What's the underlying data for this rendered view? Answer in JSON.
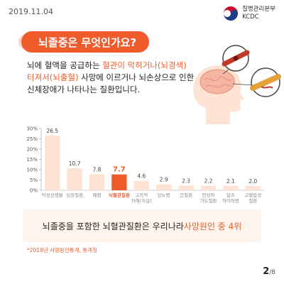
{
  "date": "2019.11.04",
  "org": {
    "line1": "질병관리본부",
    "line2": "KCDC"
  },
  "title": "뇌졸중은 무엇인가요?",
  "desc": {
    "l1a": "뇌에 혈액을 공급하는 ",
    "l1b": "혈관이 막히거나(뇌경색)",
    "l2a": "터져서(뇌출혈)",
    "l2b": " 사망에 이르거나 뇌손상으로 인한",
    "l3": "신체장애가 나타나는 질환입니다."
  },
  "callout": {
    "text": "뇌졸중을 포함한 뇌혈관질환은 우리나라 ",
    "highlight": "사망원인 중 4위"
  },
  "footnote": "*2018년 사망원인통계, 통계청",
  "page": {
    "current": "2",
    "total": "/8"
  },
  "colors": {
    "accent": "#ef5b2b",
    "bar": "#fde3d4",
    "highlight_bar": "#ef5b2b"
  },
  "chart_data": {
    "type": "bar",
    "ylim": [
      0,
      30
    ],
    "yticks": [
      "0%",
      "5%",
      "10%",
      "15%",
      "20%",
      "25%",
      "30%"
    ],
    "categories": [
      [
        "악성신생물"
      ],
      [
        "심장질환"
      ],
      [
        "폐렴"
      ],
      [
        "뇌혈관질환"
      ],
      [
        "고의적",
        "자해(자살)"
      ],
      [
        "당뇨병"
      ],
      [
        "간질환"
      ],
      [
        "만성하",
        "기도질환"
      ],
      [
        "알츠",
        "하이머병"
      ],
      [
        "고혈압성",
        "질환"
      ]
    ],
    "values": [
      26.5,
      10.7,
      7.8,
      7.7,
      4.6,
      2.9,
      2.3,
      2.2,
      2.1,
      2.0
    ],
    "value_labels": [
      "26.5",
      "10.7",
      "7.8",
      "7.7",
      "4.6",
      "2.9",
      "2.3",
      "2.2",
      "2.1",
      "2.0"
    ],
    "highlight_index": 3
  }
}
